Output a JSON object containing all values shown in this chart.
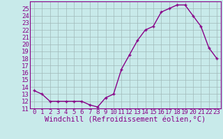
{
  "x": [
    0,
    1,
    2,
    3,
    4,
    5,
    6,
    7,
    8,
    9,
    10,
    11,
    12,
    13,
    14,
    15,
    16,
    17,
    18,
    19,
    20,
    21,
    22,
    23
  ],
  "y": [
    13.5,
    13.0,
    12.0,
    12.0,
    12.0,
    12.0,
    12.0,
    11.5,
    11.2,
    12.5,
    13.0,
    16.5,
    18.5,
    20.5,
    22.0,
    22.5,
    24.5,
    25.0,
    25.5,
    25.5,
    24.0,
    22.5,
    19.5,
    18.0
  ],
  "line_color": "#880088",
  "marker": "+",
  "bg_color": "#c8eaea",
  "grid_color": "#a0b8b8",
  "axis_color": "#880088",
  "border_color": "#880088",
  "xlabel": "Windchill (Refroidissement éolien,°C)",
  "xlim": [
    -0.5,
    23.5
  ],
  "ylim": [
    11,
    26
  ],
  "yticks": [
    11,
    12,
    13,
    14,
    15,
    16,
    17,
    18,
    19,
    20,
    21,
    22,
    23,
    24,
    25
  ],
  "xtick_labels": [
    "0",
    "1",
    "2",
    "3",
    "4",
    "5",
    "6",
    "7",
    "8",
    "9",
    "10",
    "11",
    "12",
    "13",
    "14",
    "15",
    "16",
    "17",
    "18",
    "19",
    "20",
    "21",
    "22",
    "23"
  ],
  "font_size": 6.5,
  "xlabel_font_size": 7.5,
  "marker_size": 3,
  "linewidth": 1.0
}
